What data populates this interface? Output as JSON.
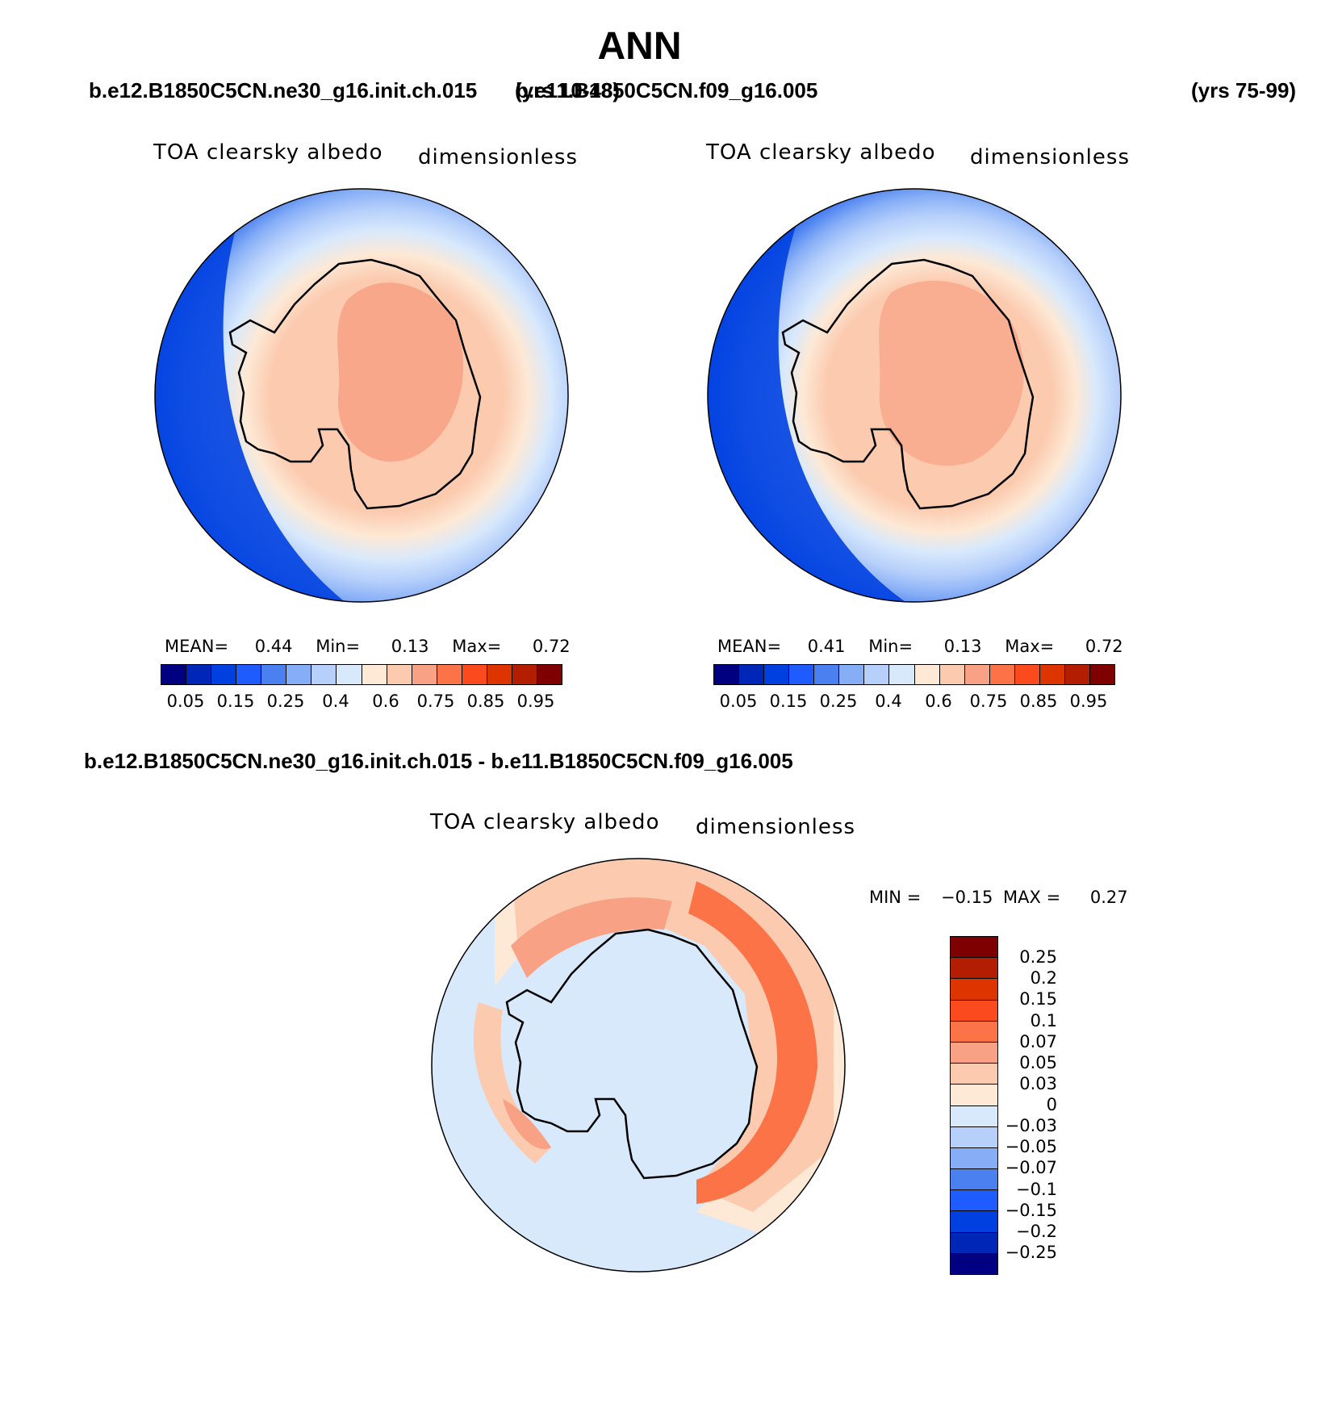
{
  "title": "ANN",
  "panels": [
    {
      "case_name": "b.e12.B1850C5CN.ne30_g16.init.ch.015",
      "years": "(yrs 10-48)",
      "variable_label": "TOA clearsky albedo",
      "units_label": "dimensionless",
      "stats": {
        "mean_label": "MEAN=",
        "mean": "0.44",
        "min_label": "Min=",
        "min": "0.13",
        "max_label": "Max=",
        "max": "0.72"
      }
    },
    {
      "case_name": "b.e11.B1850C5CN.f09_g16.005",
      "years": "(yrs 75-99)",
      "variable_label": "TOA clearsky albedo",
      "units_label": "dimensionless",
      "stats": {
        "mean_label": "MEAN=",
        "mean": "0.41",
        "min_label": "Min=",
        "min": "0.13",
        "max_label": "Max=",
        "max": "0.72"
      }
    }
  ],
  "diff_panel": {
    "case_name": "b.e12.B1850C5CN.ne30_g16.init.ch.015 - b.e11.B1850C5CN.f09_g16.005",
    "variable_label": "TOA clearsky albedo",
    "units_label": "dimensionless",
    "stats": {
      "min_label": "MIN =",
      "min": "−0.15",
      "max_label": "MAX =",
      "max": "0.27"
    }
  },
  "colorbar_abs": {
    "colors": [
      "#000080",
      "#0026b8",
      "#0040e0",
      "#1f5cff",
      "#4a80f0",
      "#86aef6",
      "#b7d0fb",
      "#d8e9fc",
      "#fde9d6",
      "#fccaae",
      "#f8a184",
      "#fb7347",
      "#fa4a1e",
      "#de3400",
      "#b31d00",
      "#7e0000"
    ],
    "tick_labels": [
      "0.05",
      "0.15",
      "0.25",
      "0.4",
      "0.6",
      "0.75",
      "0.85",
      "0.95"
    ]
  },
  "colorbar_diff": {
    "colors": [
      "#7e0000",
      "#b31d00",
      "#de3400",
      "#fa4a1e",
      "#fb7347",
      "#f8a184",
      "#fccaae",
      "#fde9d6",
      "#d8e9fc",
      "#b7d0fb",
      "#86aef6",
      "#4a80f0",
      "#1f5cff",
      "#0040e0",
      "#0026b8",
      "#000080"
    ],
    "tick_labels": [
      "0.25",
      "0.2",
      "0.15",
      "0.1",
      "0.07",
      "0.05",
      "0.03",
      "0",
      "−0.03",
      "−0.05",
      "−0.07",
      "−0.1",
      "−0.15",
      "−0.2",
      "−0.25"
    ]
  }
}
